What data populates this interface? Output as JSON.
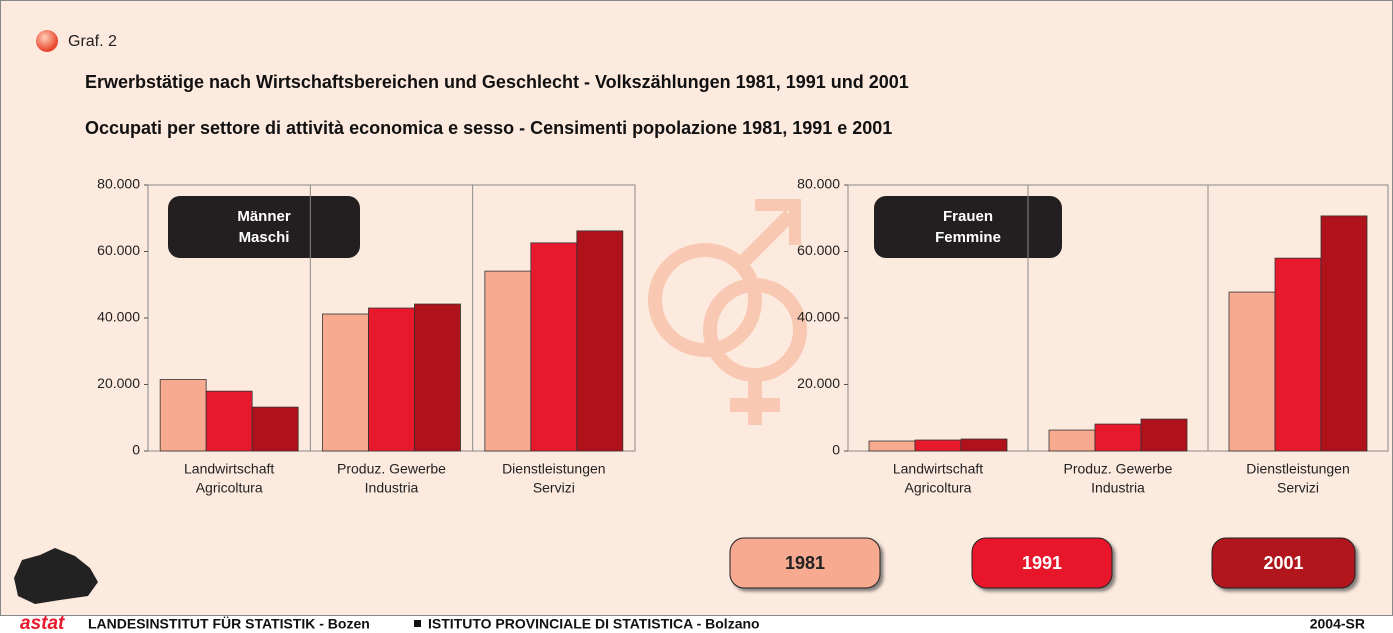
{
  "header": {
    "label": "Graf. 2",
    "title_de": "Erwerbstätige nach Wirtschaftsbereichen und Geschlecht - Volkszählungen 1981, 1991 und 2001",
    "title_it": "Occupati per settore di attività economica e sesso - Censimenti popolazione 1981, 1991 e 2001"
  },
  "chart_data": [
    {
      "type": "bar",
      "annotation": [
        "Männer",
        "Maschi"
      ],
      "categories": [
        [
          "Landwirtschaft",
          "Agricoltura"
        ],
        [
          "Produz. Gewerbe",
          "Industria"
        ],
        [
          "Dienstleistungen",
          "Servizi"
        ]
      ],
      "series": [
        {
          "name": "1981",
          "color": "#f7aa90",
          "values": [
            21500,
            41200,
            54100
          ]
        },
        {
          "name": "1991",
          "color": "#e8192c",
          "values": [
            18000,
            43000,
            62600
          ]
        },
        {
          "name": "2001",
          "color": "#b0121b",
          "values": [
            13200,
            44200,
            66200
          ]
        }
      ],
      "ylim": [
        0,
        80000
      ],
      "yticks": [
        0,
        {
          "value": 20000,
          "label": "20.000"
        },
        {
          "value": 40000,
          "label": "40.000"
        },
        {
          "value": 60000,
          "label": "60.000"
        },
        {
          "value": 80000,
          "label": "80.000"
        }
      ]
    },
    {
      "type": "bar",
      "annotation": [
        "Frauen",
        "Femmine"
      ],
      "categories": [
        [
          "Landwirtschaft",
          "Agricoltura"
        ],
        [
          "Produz. Gewerbe",
          "Industria"
        ],
        [
          "Dienstleistungen",
          "Servizi"
        ]
      ],
      "series": [
        {
          "color": "#f7aa90",
          "values": [
            3000,
            6300,
            47800
          ]
        },
        {
          "color": "#e8192c",
          "values": [
            3300,
            8100,
            58000
          ]
        },
        {
          "color": "#b0121b",
          "values": [
            3600,
            9600,
            70700
          ]
        }
      ],
      "ylim": [
        0,
        80000
      ],
      "yticks": [
        0,
        {
          "value": 20000,
          "label": "20.000"
        },
        {
          "value": 40000,
          "label": "40.000"
        },
        {
          "value": 60000,
          "label": "60.000"
        },
        {
          "value": 80000,
          "label": "80.000"
        }
      ]
    }
  ],
  "footer": {
    "logo": "astat",
    "left": "LANDESINSTITUT FÜR STATISTIK - Bozen",
    "right": "ISTITUTO PROVINCIALE DI STATISTICA - Bolzano",
    "code": "2004-SR"
  }
}
